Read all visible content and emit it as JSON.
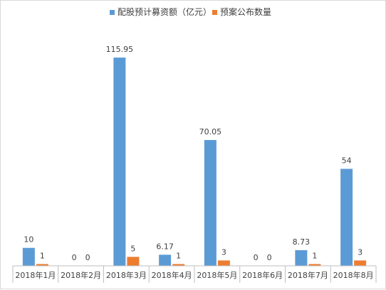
{
  "chart_data": {
    "type": "bar",
    "categories": [
      "2018年1月",
      "2018年2月",
      "2018年3月",
      "2018年4月",
      "2018年5月",
      "2018年6月",
      "2018年7月",
      "2018年8月"
    ],
    "series": [
      {
        "name": "配股预计募资额（亿元）",
        "color": "#5b9bd5",
        "values": [
          10,
          0,
          115.95,
          6.17,
          70.05,
          0,
          8.73,
          54
        ],
        "labels": [
          "10",
          "0",
          "115.95",
          "6.17",
          "70.05",
          "0",
          "8.73",
          "54"
        ]
      },
      {
        "name": "预案公布数量",
        "color": "#ed7d31",
        "values": [
          1,
          0,
          5,
          1,
          3,
          0,
          1,
          3
        ],
        "labels": [
          "1",
          "0",
          "5",
          "1",
          "3",
          "0",
          "1",
          "3"
        ]
      }
    ],
    "ylim": [
      0,
      120
    ],
    "legend_position": "top-center",
    "grid": false,
    "y_axis_visible": false
  }
}
